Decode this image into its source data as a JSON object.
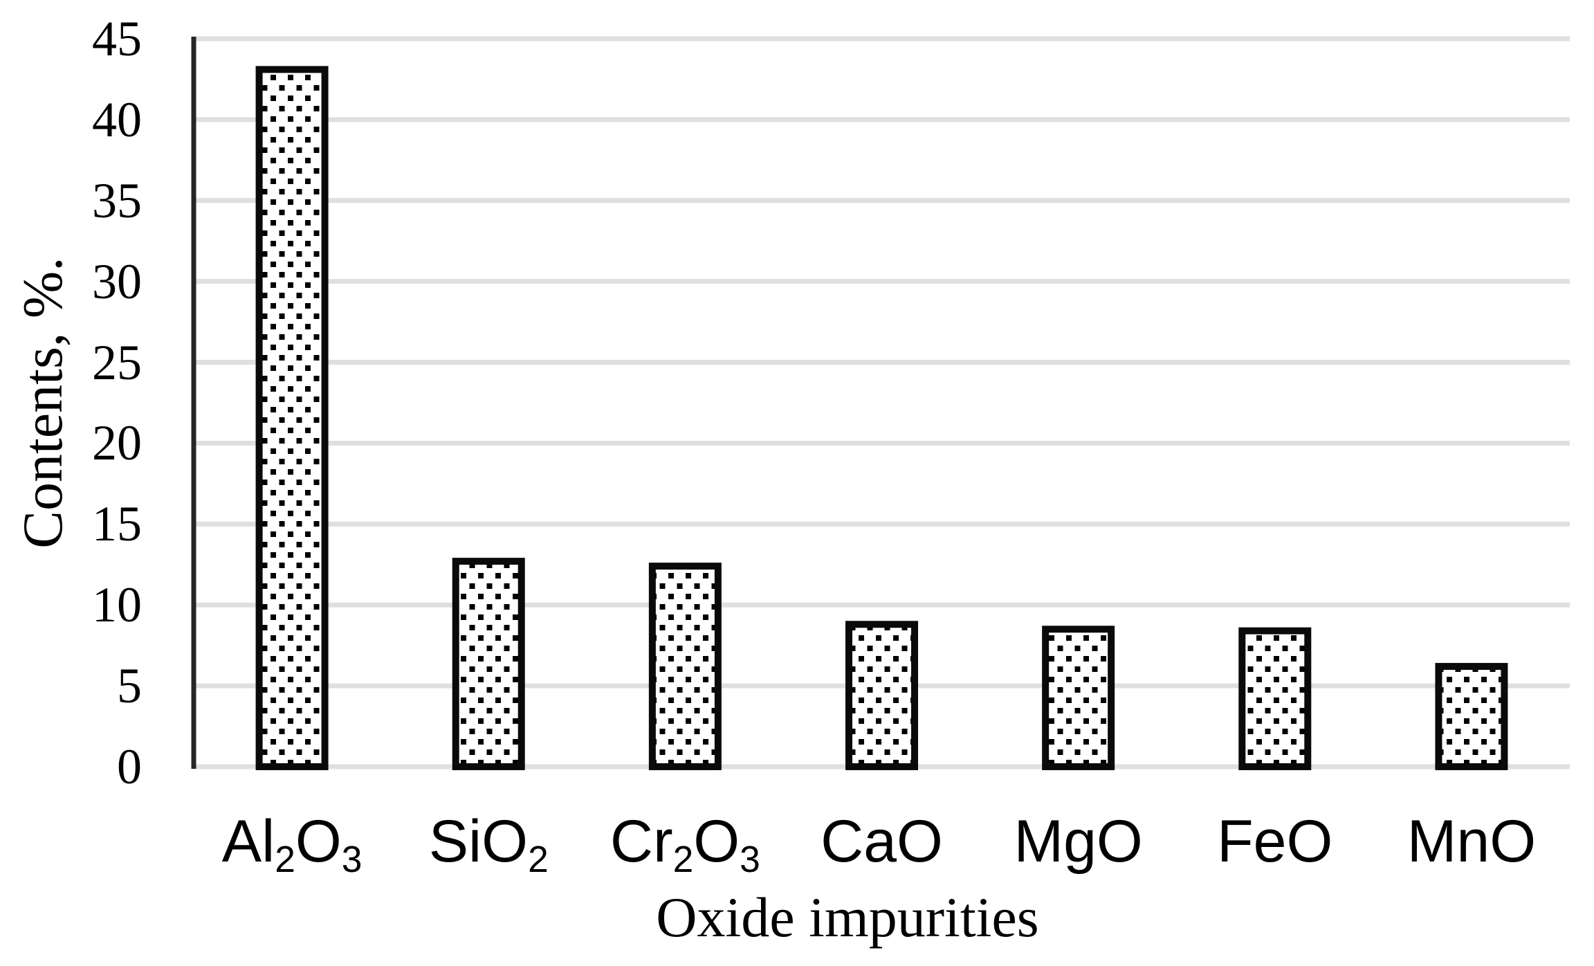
{
  "chart_data": {
    "type": "bar",
    "title": "",
    "xlabel": "Oxide impurities",
    "ylabel": "Contents, %.",
    "categories": [
      "Al2O3",
      "SiO2",
      "Cr2O3",
      "CaO",
      "MgO",
      "FeO",
      "MnO"
    ],
    "values": [
      43.1,
      12.7,
      12.4,
      8.8,
      8.5,
      8.4,
      6.2
    ],
    "ylim": [
      0,
      45
    ],
    "yticks": [
      0,
      5,
      10,
      15,
      20,
      25,
      30,
      35,
      40,
      45
    ],
    "grid": "horizontal gridlines on",
    "legend_position": "none",
    "bar_style": "white fill with black square-dot pattern, thick black outline",
    "colors": {
      "background": "#ffffff",
      "gridline": "#dfdfdf",
      "axis_line": "#262626",
      "bar_border": "#0a0a0a",
      "bar_dot": "#000000",
      "bar_fill": "#ffffff",
      "text": "#000000"
    }
  }
}
